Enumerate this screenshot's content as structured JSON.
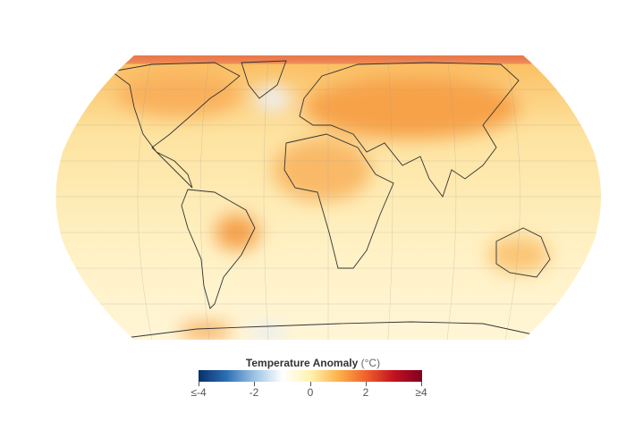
{
  "legend": {
    "title": "Temperature Anomaly",
    "unit": "(°C)",
    "ticks": [
      "≤-4",
      "-2",
      "0",
      "2",
      "≥4"
    ],
    "range": [
      -4,
      4
    ],
    "colors": [
      "#08306b",
      "#2c6fb4",
      "#ffffff",
      "#fdb24a",
      "#800020"
    ]
  },
  "map": {
    "projection": "Robinson",
    "variable": "surface temperature anomaly"
  }
}
